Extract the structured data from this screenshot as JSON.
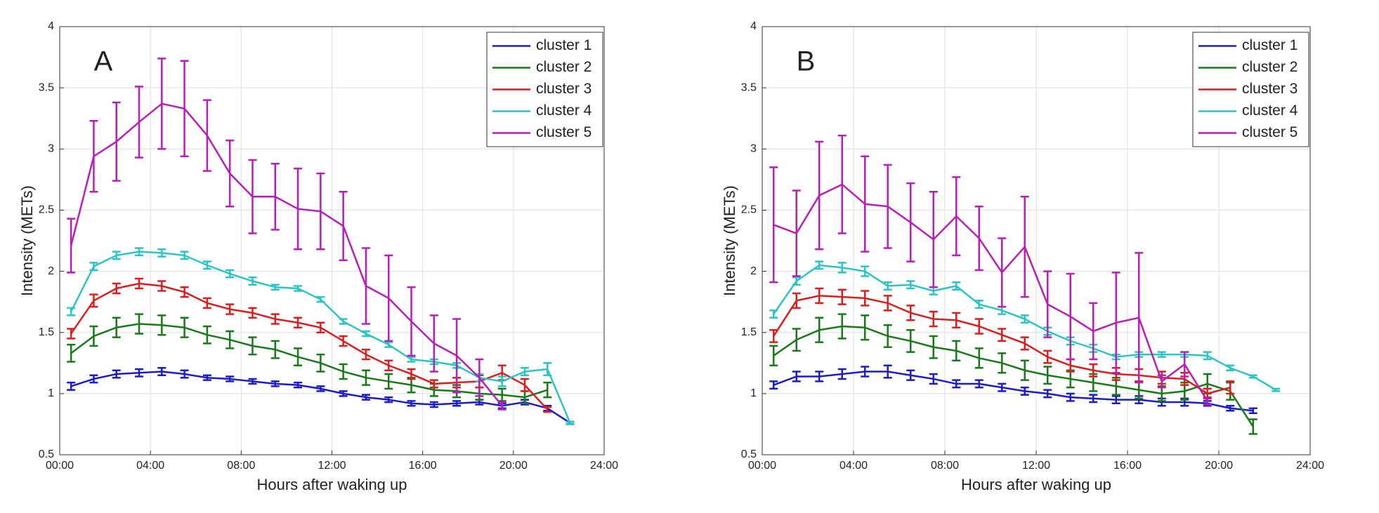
{
  "chart_data": [
    {
      "type": "line",
      "annotation": "A",
      "xlabel": "Hours after waking up",
      "ylabel": "Intensity (METs)",
      "x": [
        0.5,
        1.5,
        2.5,
        3.5,
        4.5,
        5.5,
        6.5,
        7.5,
        8.5,
        9.5,
        10.5,
        11.5,
        12.5,
        13.5,
        14.5,
        15.5,
        16.5,
        17.5,
        18.5,
        19.5,
        20.5,
        21.5,
        22.5
      ],
      "xlim": [
        0,
        24
      ],
      "xticks": [
        {
          "value": 0,
          "label": "00:00"
        },
        {
          "value": 4,
          "label": "04:00"
        },
        {
          "value": 8,
          "label": "08:00"
        },
        {
          "value": 12,
          "label": "12:00"
        },
        {
          "value": 16,
          "label": "16:00"
        },
        {
          "value": 20,
          "label": "20:00"
        },
        {
          "value": 24,
          "label": "24:00"
        }
      ],
      "ylim": [
        0.5,
        4
      ],
      "yticks": [
        0.5,
        1,
        1.5,
        2,
        2.5,
        3,
        3.5,
        4
      ],
      "grid": true,
      "legend": "upper right",
      "series": [
        {
          "name": "cluster 1",
          "color": "#1c1cc8",
          "values": [
            1.06,
            1.12,
            1.16,
            1.17,
            1.18,
            1.16,
            1.13,
            1.12,
            1.1,
            1.08,
            1.07,
            1.04,
            1.0,
            0.97,
            0.95,
            0.92,
            0.91,
            0.92,
            0.93,
            0.9,
            0.93,
            0.88,
            0.76
          ],
          "errors": [
            0.03,
            0.03,
            0.03,
            0.03,
            0.03,
            0.03,
            0.02,
            0.02,
            0.02,
            0.02,
            0.02,
            0.02,
            0.02,
            0.02,
            0.02,
            0.02,
            0.02,
            0.02,
            0.02,
            0.02,
            0.02,
            0.02,
            0.01
          ]
        },
        {
          "name": "cluster 2",
          "color": "#1a7a1a",
          "values": [
            1.33,
            1.47,
            1.54,
            1.57,
            1.56,
            1.54,
            1.48,
            1.44,
            1.39,
            1.36,
            1.3,
            1.25,
            1.18,
            1.13,
            1.1,
            1.07,
            1.03,
            1.02,
            1.0,
            0.99,
            0.97,
            1.03,
            null
          ],
          "errors": [
            0.07,
            0.08,
            0.08,
            0.08,
            0.08,
            0.08,
            0.07,
            0.07,
            0.07,
            0.07,
            0.07,
            0.07,
            0.06,
            0.06,
            0.06,
            0.06,
            0.05,
            0.05,
            0.05,
            0.05,
            0.05,
            0.06,
            null
          ]
        },
        {
          "name": "cluster 3",
          "color": "#d91f1f",
          "values": [
            1.49,
            1.76,
            1.86,
            1.9,
            1.88,
            1.83,
            1.74,
            1.69,
            1.66,
            1.61,
            1.58,
            1.54,
            1.43,
            1.32,
            1.23,
            1.16,
            1.08,
            1.09,
            1.1,
            1.17,
            1.07,
            0.87,
            null
          ],
          "errors": [
            0.04,
            0.05,
            0.04,
            0.04,
            0.04,
            0.04,
            0.04,
            0.04,
            0.04,
            0.04,
            0.04,
            0.04,
            0.04,
            0.04,
            0.04,
            0.04,
            0.03,
            0.04,
            0.05,
            0.06,
            0.05,
            0.02,
            null
          ]
        },
        {
          "name": "cluster 4",
          "color": "#2ec4c4",
          "values": [
            1.67,
            2.04,
            2.13,
            2.16,
            2.15,
            2.13,
            2.05,
            1.98,
            1.92,
            1.87,
            1.86,
            1.77,
            1.59,
            1.49,
            1.4,
            1.28,
            1.26,
            1.23,
            1.13,
            1.1,
            1.18,
            1.2,
            0.76
          ],
          "errors": [
            0.03,
            0.03,
            0.03,
            0.03,
            0.03,
            0.03,
            0.03,
            0.03,
            0.03,
            0.02,
            0.02,
            0.02,
            0.02,
            0.02,
            0.02,
            0.02,
            0.02,
            0.02,
            0.03,
            0.04,
            0.03,
            0.05,
            0.01
          ]
        },
        {
          "name": "cluster 5",
          "color": "#b81eb8",
          "values": [
            2.21,
            2.94,
            3.06,
            3.22,
            3.37,
            3.33,
            3.11,
            2.8,
            2.61,
            2.61,
            2.51,
            2.49,
            2.37,
            1.88,
            1.78,
            1.59,
            1.41,
            1.31,
            1.13,
            0.9,
            null,
            null,
            null
          ],
          "errors": [
            0.22,
            0.29,
            0.32,
            0.29,
            0.37,
            0.39,
            0.29,
            0.27,
            0.3,
            0.27,
            0.33,
            0.31,
            0.28,
            0.31,
            0.35,
            0.28,
            0.23,
            0.3,
            0.15,
            0.03,
            null,
            null,
            null
          ]
        }
      ]
    },
    {
      "type": "line",
      "annotation": "B",
      "xlabel": "Hours after waking up",
      "ylabel": "Intensity (METs)",
      "x": [
        0.5,
        1.5,
        2.5,
        3.5,
        4.5,
        5.5,
        6.5,
        7.5,
        8.5,
        9.5,
        10.5,
        11.5,
        12.5,
        13.5,
        14.5,
        15.5,
        16.5,
        17.5,
        18.5,
        19.5,
        20.5,
        21.5,
        22.5
      ],
      "xlim": [
        0,
        24
      ],
      "xticks": [
        {
          "value": 0,
          "label": "00:00"
        },
        {
          "value": 4,
          "label": "04:00"
        },
        {
          "value": 8,
          "label": "08:00"
        },
        {
          "value": 12,
          "label": "12:00"
        },
        {
          "value": 16,
          "label": "16:00"
        },
        {
          "value": 20,
          "label": "20:00"
        },
        {
          "value": 24,
          "label": "24:00"
        }
      ],
      "ylim": [
        0.5,
        4
      ],
      "yticks": [
        0.5,
        1,
        1.5,
        2,
        2.5,
        3,
        3.5,
        4
      ],
      "grid": true,
      "legend": "upper right",
      "series": [
        {
          "name": "cluster 1",
          "color": "#1c1cc8",
          "values": [
            1.07,
            1.14,
            1.14,
            1.16,
            1.18,
            1.18,
            1.15,
            1.12,
            1.08,
            1.08,
            1.05,
            1.02,
            1.0,
            0.97,
            0.96,
            0.95,
            0.95,
            0.93,
            0.93,
            0.92,
            0.88,
            0.86,
            null
          ],
          "errors": [
            0.03,
            0.04,
            0.04,
            0.04,
            0.04,
            0.05,
            0.04,
            0.04,
            0.03,
            0.03,
            0.03,
            0.03,
            0.03,
            0.03,
            0.03,
            0.03,
            0.03,
            0.03,
            0.03,
            0.02,
            0.02,
            0.02,
            null
          ]
        },
        {
          "name": "cluster 2",
          "color": "#1a7a1a",
          "values": [
            1.31,
            1.44,
            1.52,
            1.55,
            1.54,
            1.47,
            1.43,
            1.38,
            1.35,
            1.29,
            1.25,
            1.19,
            1.15,
            1.12,
            1.09,
            1.06,
            1.03,
            1.0,
            1.02,
            1.08,
            1.02,
            0.73,
            null
          ],
          "errors": [
            0.08,
            0.09,
            0.1,
            0.1,
            0.1,
            0.09,
            0.09,
            0.09,
            0.08,
            0.08,
            0.08,
            0.08,
            0.07,
            0.07,
            0.07,
            0.07,
            0.07,
            0.06,
            0.07,
            0.08,
            0.07,
            0.06,
            null
          ]
        },
        {
          "name": "cluster 3",
          "color": "#d91f1f",
          "values": [
            1.47,
            1.76,
            1.8,
            1.79,
            1.78,
            1.74,
            1.66,
            1.61,
            1.6,
            1.55,
            1.48,
            1.41,
            1.3,
            1.23,
            1.19,
            1.16,
            1.15,
            1.13,
            1.12,
            1.0,
            1.05,
            null,
            null
          ],
          "errors": [
            0.05,
            0.06,
            0.06,
            0.06,
            0.06,
            0.06,
            0.06,
            0.06,
            0.06,
            0.06,
            0.05,
            0.05,
            0.05,
            0.05,
            0.05,
            0.05,
            0.05,
            0.05,
            0.05,
            0.04,
            0.05,
            null,
            null
          ]
        },
        {
          "name": "cluster 4",
          "color": "#2ec4c4",
          "values": [
            1.65,
            1.92,
            2.05,
            2.03,
            2.0,
            1.88,
            1.89,
            1.84,
            1.88,
            1.73,
            1.68,
            1.61,
            1.51,
            1.43,
            1.37,
            1.3,
            1.32,
            1.32,
            1.32,
            1.31,
            1.21,
            1.14,
            1.03
          ],
          "errors": [
            0.03,
            0.03,
            0.03,
            0.04,
            0.04,
            0.03,
            0.03,
            0.03,
            0.03,
            0.03,
            0.03,
            0.03,
            0.03,
            0.03,
            0.03,
            0.02,
            0.02,
            0.02,
            0.02,
            0.03,
            0.02,
            0.01,
            0.01
          ]
        },
        {
          "name": "cluster 5",
          "color": "#b81eb8",
          "values": [
            2.38,
            2.31,
            2.62,
            2.71,
            2.55,
            2.53,
            2.4,
            2.26,
            2.45,
            2.27,
            1.99,
            2.2,
            1.73,
            1.63,
            1.51,
            1.58,
            1.62,
            1.1,
            1.24,
            0.94,
            null,
            null,
            null
          ],
          "errors": [
            0.47,
            0.35,
            0.44,
            0.4,
            0.39,
            0.34,
            0.32,
            0.39,
            0.32,
            0.26,
            0.28,
            0.41,
            0.27,
            0.35,
            0.23,
            0.41,
            0.53,
            0.05,
            0.1,
            0.03,
            null,
            null,
            null
          ]
        }
      ]
    }
  ]
}
